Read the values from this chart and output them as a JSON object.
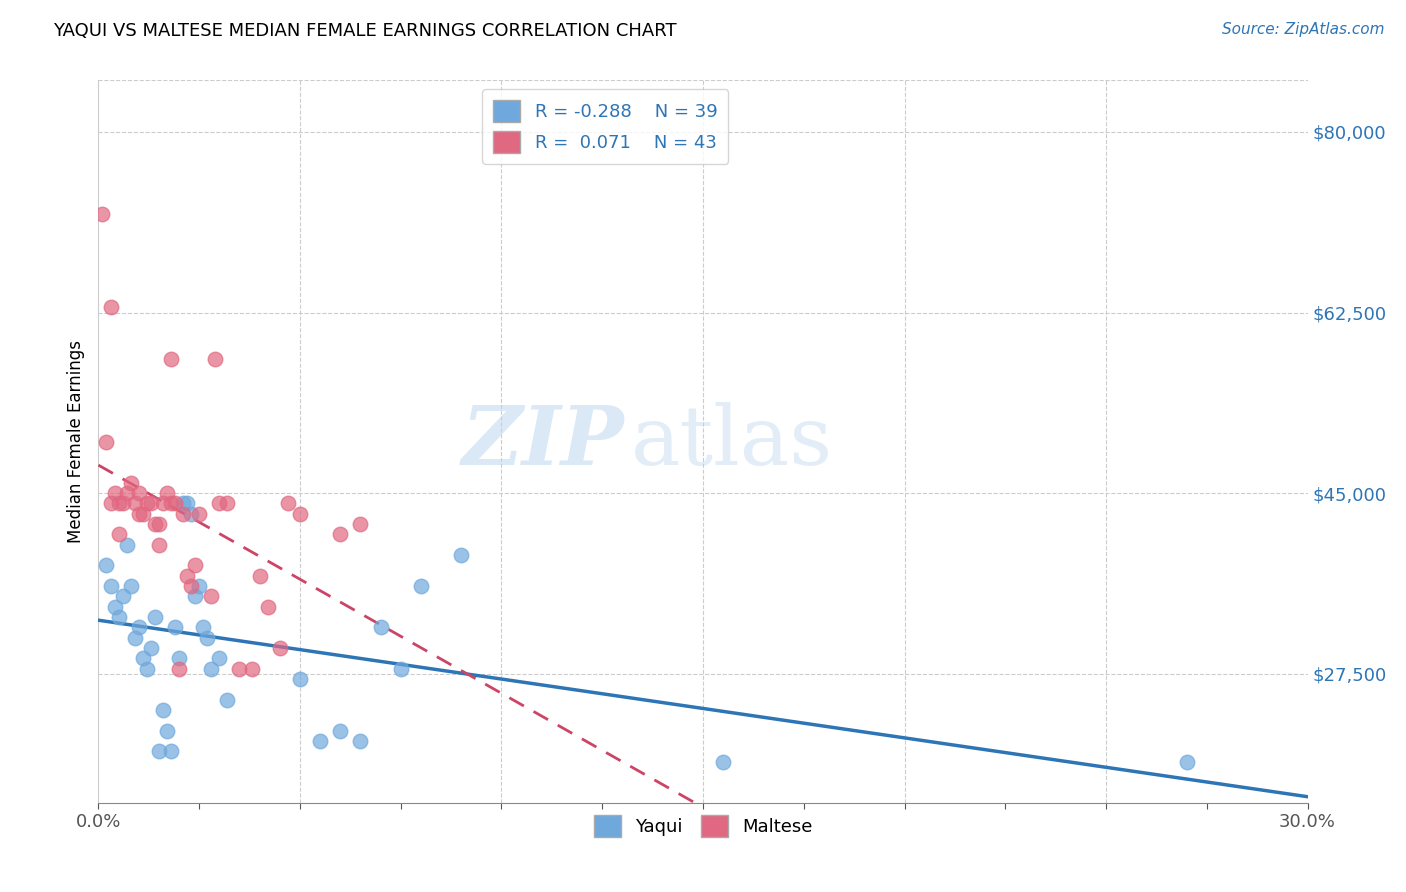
{
  "title": "YAQUI VS MALTESE MEDIAN FEMALE EARNINGS CORRELATION CHART",
  "source": "Source: ZipAtlas.com",
  "ylabel": "Median Female Earnings",
  "xlim": [
    0.0,
    0.3
  ],
  "ylim": [
    15000,
    85000
  ],
  "xtick_labels": [
    "0.0%",
    "",
    "",
    "",
    "",
    "",
    "",
    "",
    "",
    "",
    "",
    "",
    "30.0%"
  ],
  "xtick_vals": [
    0.0,
    0.025,
    0.05,
    0.075,
    0.1,
    0.125,
    0.15,
    0.175,
    0.2,
    0.225,
    0.25,
    0.275,
    0.3
  ],
  "ytick_right_vals": [
    27500,
    45000,
    62500,
    80000
  ],
  "ytick_right_labels": [
    "$27,500",
    "$45,000",
    "$62,500",
    "$80,000"
  ],
  "yaqui_color": "#6fa8dc",
  "maltese_color": "#e06880",
  "yaqui_line_color": "#2e75b6",
  "maltese_line_color": "#cc4466",
  "yaqui_R": -0.288,
  "yaqui_N": 39,
  "maltese_R": 0.071,
  "maltese_N": 43,
  "watermark_zip": "ZIP",
  "watermark_atlas": "atlas",
  "legend_yaqui": "Yaqui",
  "legend_maltese": "Maltese",
  "yaqui_x": [
    0.002,
    0.003,
    0.004,
    0.005,
    0.006,
    0.007,
    0.008,
    0.009,
    0.01,
    0.011,
    0.012,
    0.013,
    0.014,
    0.015,
    0.016,
    0.017,
    0.018,
    0.019,
    0.02,
    0.021,
    0.022,
    0.023,
    0.024,
    0.025,
    0.026,
    0.027,
    0.028,
    0.03,
    0.032,
    0.05,
    0.055,
    0.06,
    0.065,
    0.07,
    0.075,
    0.08,
    0.09,
    0.155,
    0.27
  ],
  "yaqui_y": [
    38000,
    36000,
    34000,
    33000,
    35000,
    40000,
    36000,
    31000,
    32000,
    29000,
    28000,
    30000,
    33000,
    20000,
    24000,
    22000,
    20000,
    32000,
    29000,
    44000,
    44000,
    43000,
    35000,
    36000,
    32000,
    31000,
    28000,
    29000,
    25000,
    27000,
    21000,
    22000,
    21000,
    32000,
    28000,
    36000,
    39000,
    19000,
    19000
  ],
  "maltese_x": [
    0.001,
    0.002,
    0.003,
    0.003,
    0.004,
    0.005,
    0.005,
    0.006,
    0.007,
    0.008,
    0.009,
    0.01,
    0.01,
    0.011,
    0.012,
    0.013,
    0.014,
    0.015,
    0.015,
    0.016,
    0.017,
    0.018,
    0.018,
    0.019,
    0.02,
    0.021,
    0.022,
    0.023,
    0.024,
    0.025,
    0.028,
    0.029,
    0.03,
    0.032,
    0.035,
    0.038,
    0.04,
    0.042,
    0.045,
    0.047,
    0.05,
    0.06,
    0.065
  ],
  "maltese_y": [
    72000,
    50000,
    44000,
    63000,
    45000,
    44000,
    41000,
    44000,
    45000,
    46000,
    44000,
    43000,
    45000,
    43000,
    44000,
    44000,
    42000,
    42000,
    40000,
    44000,
    45000,
    44000,
    58000,
    44000,
    28000,
    43000,
    37000,
    36000,
    38000,
    43000,
    35000,
    58000,
    44000,
    44000,
    28000,
    28000,
    37000,
    34000,
    30000,
    44000,
    43000,
    41000,
    42000
  ]
}
